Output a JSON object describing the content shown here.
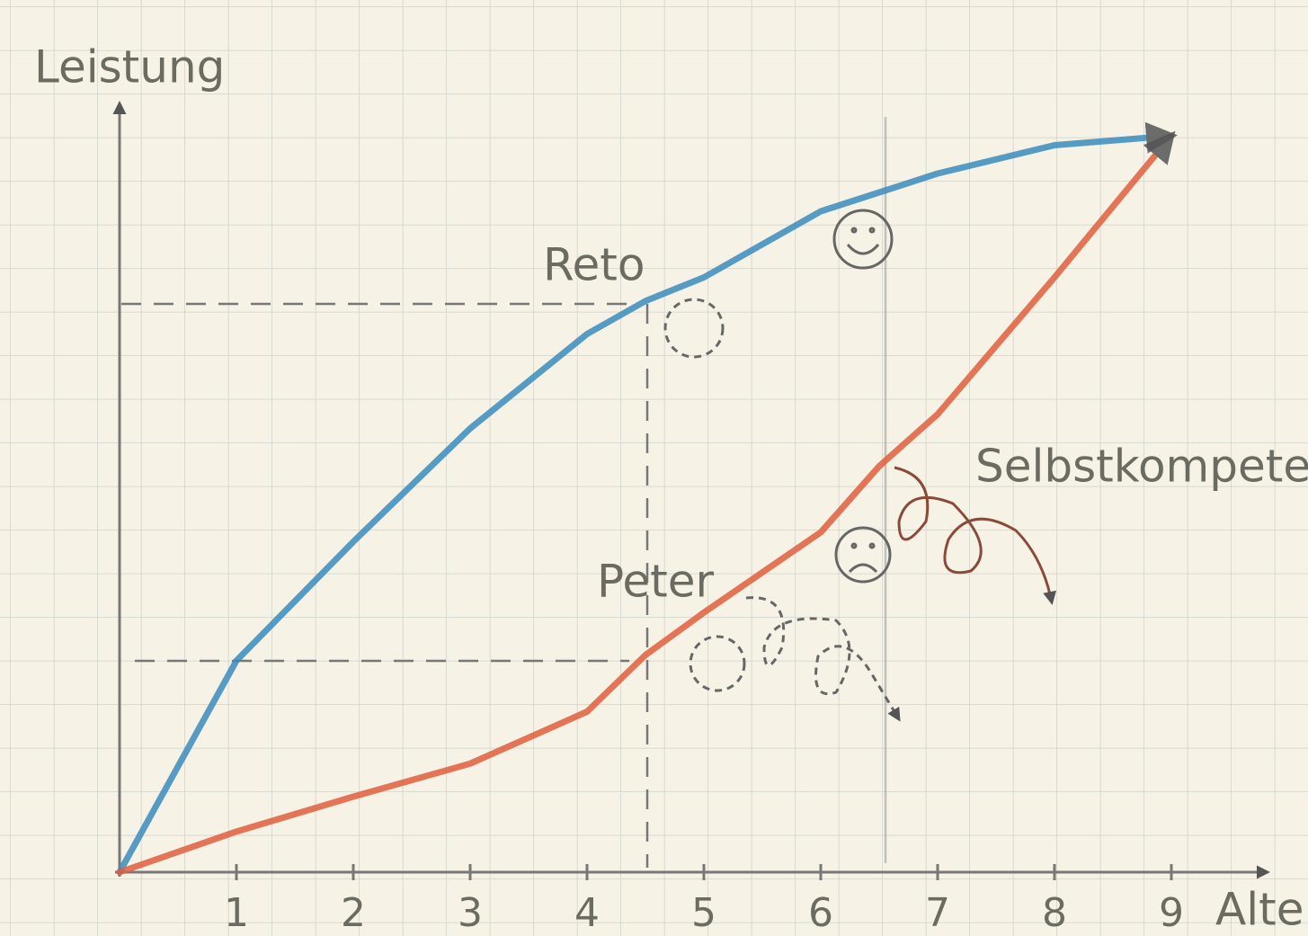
{
  "chart_data": {
    "type": "line",
    "y_label": "Leistung",
    "x_label": "Alter",
    "xlim": [
      0,
      9.8
    ],
    "xticks": [
      1,
      2,
      3,
      4,
      5,
      6,
      7,
      8,
      9
    ],
    "ylim": [
      0,
      8.2
    ],
    "x": [
      0,
      1,
      2,
      3,
      4,
      4.5,
      5,
      6,
      6.5,
      7,
      8,
      9
    ],
    "series": [
      {
        "name": "Reto",
        "color": "#3a8cbf",
        "values": [
          0,
          2.24,
          3.5,
          4.7,
          5.7,
          6.05,
          6.3,
          7.0,
          7.2,
          7.4,
          7.7,
          7.8
        ]
      },
      {
        "name": "Peter",
        "color": "#e0603e",
        "values": [
          0,
          0.43,
          0.8,
          1.15,
          1.7,
          2.3,
          2.75,
          3.6,
          4.3,
          4.85,
          6.3,
          7.8
        ]
      }
    ],
    "annotations": [
      "Selbstkompetenz"
    ]
  }
}
